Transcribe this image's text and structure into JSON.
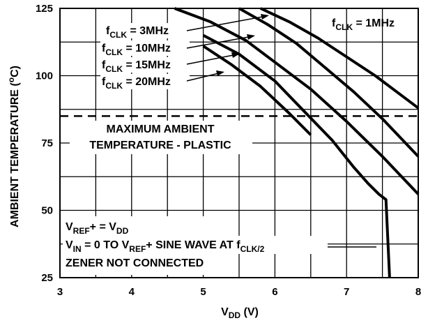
{
  "chart_data": {
    "type": "line",
    "title": "",
    "xlabel": "V",
    "xlabel_sub": "DD",
    "xlabel_unit": " (V)",
    "ylabel": "AMBIENT TEMPERATURE (",
    "ylabel_sup": "o",
    "ylabel_end": "C)",
    "xlim": [
      3,
      8
    ],
    "ylim": [
      25,
      125
    ],
    "x_ticks": [
      "3",
      "4",
      "5",
      "6",
      "7",
      "8"
    ],
    "y_ticks": [
      "25",
      "50",
      "75",
      "100",
      "125"
    ],
    "x_tick_values": [
      3,
      4,
      5,
      6,
      7,
      8
    ],
    "y_tick_values": [
      25,
      50,
      75,
      100,
      125
    ],
    "grid": true,
    "grid_x": [
      3,
      3.5,
      4,
      4.5,
      5,
      5.5,
      6,
      6.5,
      7,
      7.5,
      8
    ],
    "grid_y": [
      25,
      37.5,
      50,
      62.5,
      75,
      87.5,
      100,
      112.5,
      125
    ],
    "series": [
      {
        "name": "fCLK = 1MHz",
        "x": [
          5.8,
          6.2,
          6.6,
          7.0,
          7.4,
          7.7,
          8.0
        ],
        "y": [
          125,
          120,
          114,
          107,
          100,
          94,
          88
        ]
      },
      {
        "name": "fCLK = 3MHz",
        "x": [
          5.5,
          5.9,
          6.3,
          6.7,
          7.1,
          7.5,
          8.0
        ],
        "y": [
          125,
          119,
          112,
          103,
          94,
          84,
          70
        ]
      },
      {
        "name": "fCLK = 10MHz",
        "x": [
          4.6,
          5.1,
          5.6,
          6.0,
          6.5,
          7.0,
          7.5,
          8.0
        ],
        "y": [
          125,
          120,
          113,
          105,
          95,
          83,
          70,
          56
        ]
      },
      {
        "name": "fCLK = 15MHz",
        "x": [
          5.0,
          5.5,
          6.0,
          6.4,
          6.8,
          7.1,
          7.3,
          7.45,
          7.55,
          7.6
        ],
        "y": [
          115,
          108,
          98,
          87,
          76,
          66,
          60,
          56,
          54,
          25
        ]
      },
      {
        "name": "fCLK = 20MHz",
        "x": [
          5.0,
          5.4,
          5.8,
          6.2,
          6.5
        ],
        "y": [
          111,
          104,
          96,
          86,
          78
        ]
      }
    ],
    "labels": [
      {
        "main": "f",
        "sub": "CLK",
        "rest": " = 1MHz"
      },
      {
        "main": "f",
        "sub": "CLK",
        "rest": " = 3MHz"
      },
      {
        "main": "f",
        "sub": "CLK",
        "rest": " = 10MHz"
      },
      {
        "main": "f",
        "sub": "CLK",
        "rest": " = 15MHz"
      },
      {
        "main": "f",
        "sub": "CLK",
        "rest": " = 20MHz"
      }
    ],
    "reference_line": {
      "y": 85,
      "style": "dashed",
      "label_line1": "MAXIMUM AMBIENT",
      "label_line2": "TEMPERATURE - PLASTIC"
    },
    "notes": {
      "line1_a": "V",
      "line1_sub_a": "REF",
      "line1_b": "+ = V",
      "line1_sub_b": "DD",
      "line2_a": "V",
      "line2_sub_a": "IN",
      "line2_b": " = 0 TO V",
      "line2_sub_b": "REF",
      "line2_c": "+ SINE WAVE AT  f",
      "line2_sub_c": "CLK/2",
      "line3": "ZENER NOT CONNECTED"
    }
  }
}
